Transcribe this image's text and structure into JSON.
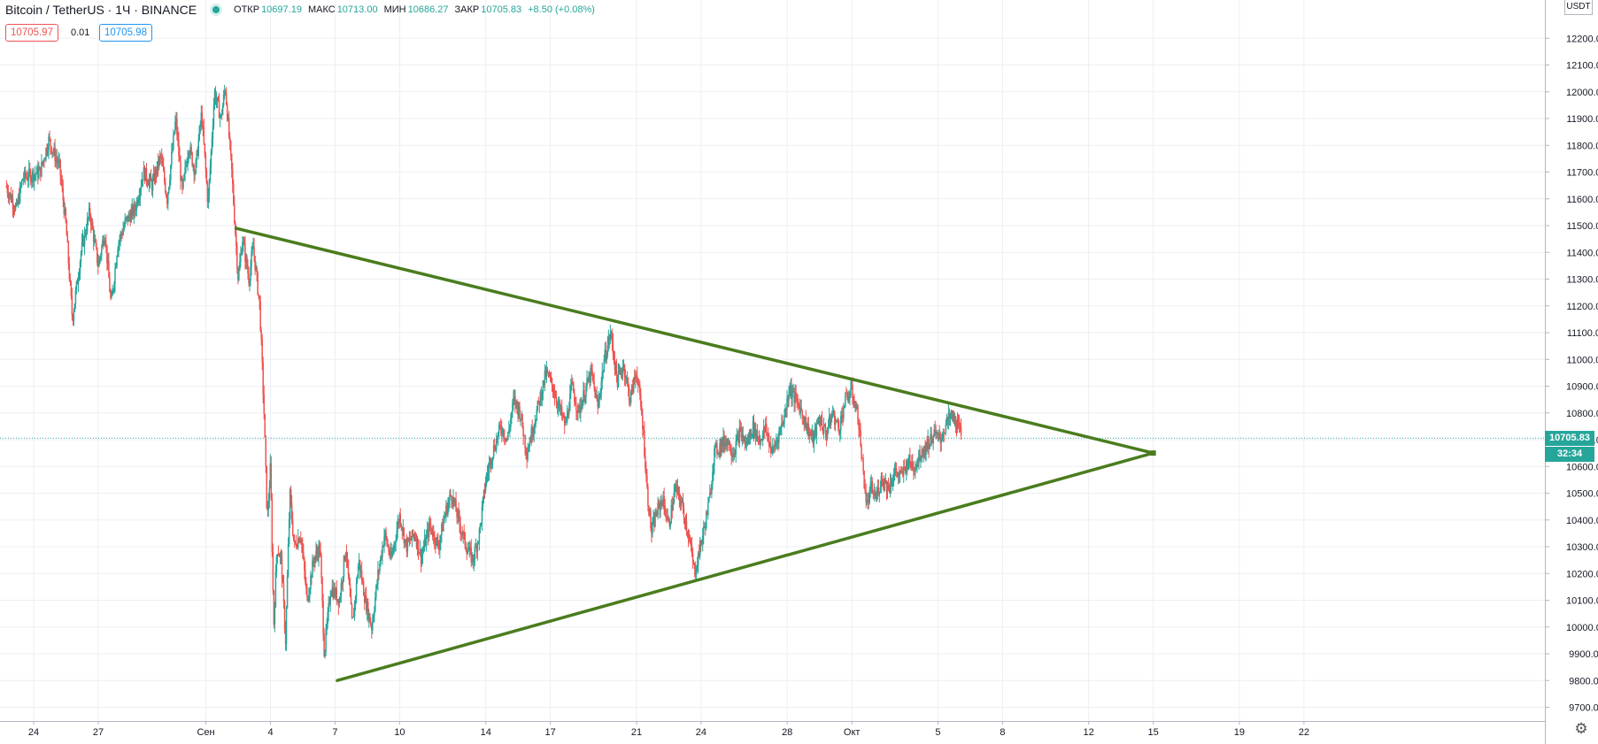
{
  "header": {
    "symbol": "Bitcoin / TetherUS · 1Ч · BINANCE",
    "open_label": "ОТКР",
    "open_value": "10697.19",
    "high_label": "МАКС",
    "high_value": "10713.00",
    "low_label": "МИН",
    "low_value": "10686.27",
    "close_label": "ЗАКР",
    "close_value": "10705.83",
    "change": "+8.50 (+0.08%)"
  },
  "trade": {
    "sell_price": "10705.97",
    "spread": "0.01",
    "buy_price": "10705.98"
  },
  "currency": "USDT",
  "last_price_label": "10705.83",
  "countdown_label": "32:34",
  "colors": {
    "up": "#26a69a",
    "down": "#ef5350",
    "trendline": "#4a7c1e",
    "grid": "#eceff4"
  },
  "chart_data": {
    "type": "candlestick",
    "y_ticks": [
      "9700.00",
      "9800.00",
      "9900.00",
      "10000.00",
      "10100.00",
      "10200.00",
      "10300.00",
      "10400.00",
      "10500.00",
      "10600.00",
      "10700.00",
      "10800.00",
      "10900.00",
      "11000.00",
      "11100.00",
      "11200.00",
      "11300.00",
      "11400.00",
      "11500.00",
      "11600.00",
      "11700.00",
      "11800.00",
      "11900.00",
      "12000.00",
      "12100.00",
      "12200.00"
    ],
    "ylim": [
      9600,
      12300
    ],
    "x_ticks": [
      {
        "label": "24",
        "day": 0
      },
      {
        "label": "27",
        "day": 3
      },
      {
        "label": "Сен",
        "day": 8
      },
      {
        "label": "4",
        "day": 11
      },
      {
        "label": "7",
        "day": 14
      },
      {
        "label": "10",
        "day": 17
      },
      {
        "label": "14",
        "day": 21
      },
      {
        "label": "17",
        "day": 24
      },
      {
        "label": "21",
        "day": 28
      },
      {
        "label": "24",
        "day": 31
      },
      {
        "label": "28",
        "day": 35
      },
      {
        "label": "Окт",
        "day": 38
      },
      {
        "label": "5",
        "day": 42
      },
      {
        "label": "8",
        "day": 45
      },
      {
        "label": "12",
        "day": 49
      },
      {
        "label": "15",
        "day": 52
      },
      {
        "label": "19",
        "day": 56
      },
      {
        "label": "22",
        "day": 59
      }
    ],
    "price_path": [
      [
        -1.3,
        11650
      ],
      [
        -0.8,
        11560
      ],
      [
        -0.5,
        11680
      ],
      [
        0.3,
        11700
      ],
      [
        0.7,
        11820
      ],
      [
        1.2,
        11720
      ],
      [
        1.5,
        11500
      ],
      [
        1.8,
        11150
      ],
      [
        2.2,
        11400
      ],
      [
        2.6,
        11550
      ],
      [
        3.0,
        11350
      ],
      [
        3.3,
        11480
      ],
      [
        3.6,
        11200
      ],
      [
        3.9,
        11430
      ],
      [
        4.3,
        11520
      ],
      [
        4.7,
        11560
      ],
      [
        5.1,
        11700
      ],
      [
        5.5,
        11650
      ],
      [
        5.9,
        11760
      ],
      [
        6.2,
        11600
      ],
      [
        6.6,
        11900
      ],
      [
        6.9,
        11620
      ],
      [
        7.2,
        11800
      ],
      [
        7.5,
        11700
      ],
      [
        7.8,
        11920
      ],
      [
        8.1,
        11580
      ],
      [
        8.4,
        12000
      ],
      [
        8.7,
        11900
      ],
      [
        8.9,
        12020
      ],
      [
        9.2,
        11700
      ],
      [
        9.5,
        11300
      ],
      [
        9.7,
        11450
      ],
      [
        10.0,
        11300
      ],
      [
        10.2,
        11420
      ],
      [
        10.5,
        11200
      ],
      [
        10.7,
        10800
      ],
      [
        10.85,
        10400
      ],
      [
        11.0,
        10600
      ],
      [
        11.15,
        10000
      ],
      [
        11.3,
        10300
      ],
      [
        11.5,
        10250
      ],
      [
        11.7,
        9950
      ],
      [
        11.9,
        10500
      ],
      [
        12.1,
        10300
      ],
      [
        12.4,
        10350
      ],
      [
        12.7,
        10100
      ],
      [
        13.0,
        10250
      ],
      [
        13.3,
        10300
      ],
      [
        13.5,
        9900
      ],
      [
        13.8,
        10150
      ],
      [
        14.2,
        10100
      ],
      [
        14.5,
        10300
      ],
      [
        14.8,
        10000
      ],
      [
        15.1,
        10250
      ],
      [
        15.4,
        10100
      ],
      [
        15.7,
        10000
      ],
      [
        16.0,
        10200
      ],
      [
        16.3,
        10350
      ],
      [
        16.6,
        10250
      ],
      [
        17.0,
        10420
      ],
      [
        17.3,
        10300
      ],
      [
        17.7,
        10350
      ],
      [
        18.0,
        10260
      ],
      [
        18.4,
        10380
      ],
      [
        18.8,
        10300
      ],
      [
        19.1,
        10420
      ],
      [
        19.4,
        10500
      ],
      [
        19.8,
        10380
      ],
      [
        20.1,
        10300
      ],
      [
        20.4,
        10250
      ],
      [
        20.7,
        10350
      ],
      [
        21.0,
        10550
      ],
      [
        21.3,
        10650
      ],
      [
        21.7,
        10750
      ],
      [
        22.0,
        10700
      ],
      [
        22.3,
        10850
      ],
      [
        22.6,
        10800
      ],
      [
        22.9,
        10650
      ],
      [
        23.2,
        10750
      ],
      [
        23.5,
        10850
      ],
      [
        23.8,
        10950
      ],
      [
        24.1,
        10900
      ],
      [
        24.4,
        10820
      ],
      [
        24.7,
        10750
      ],
      [
        25.0,
        10900
      ],
      [
        25.3,
        10800
      ],
      [
        25.6,
        10880
      ],
      [
        25.9,
        10950
      ],
      [
        26.2,
        10820
      ],
      [
        26.5,
        11000
      ],
      [
        26.8,
        11100
      ],
      [
        27.1,
        10920
      ],
      [
        27.4,
        10980
      ],
      [
        27.7,
        10850
      ],
      [
        28.0,
        10960
      ],
      [
        28.3,
        10750
      ],
      [
        28.5,
        10500
      ],
      [
        28.7,
        10350
      ],
      [
        28.9,
        10420
      ],
      [
        29.2,
        10480
      ],
      [
        29.5,
        10380
      ],
      [
        29.8,
        10520
      ],
      [
        30.1,
        10460
      ],
      [
        30.4,
        10350
      ],
      [
        30.7,
        10200
      ],
      [
        30.9,
        10280
      ],
      [
        31.1,
        10350
      ],
      [
        31.4,
        10480
      ],
      [
        31.6,
        10650
      ],
      [
        31.9,
        10680
      ],
      [
        32.2,
        10700
      ],
      [
        32.5,
        10650
      ],
      [
        32.8,
        10730
      ],
      [
        33.1,
        10680
      ],
      [
        33.4,
        10750
      ],
      [
        33.7,
        10700
      ],
      [
        34.0,
        10740
      ],
      [
        34.3,
        10650
      ],
      [
        34.6,
        10720
      ],
      [
        34.9,
        10800
      ],
      [
        35.1,
        10900
      ],
      [
        35.3,
        10860
      ],
      [
        35.6,
        10820
      ],
      [
        35.9,
        10750
      ],
      [
        36.2,
        10700
      ],
      [
        36.5,
        10780
      ],
      [
        36.8,
        10720
      ],
      [
        37.1,
        10800
      ],
      [
        37.4,
        10740
      ],
      [
        37.7,
        10850
      ],
      [
        38.0,
        10880
      ],
      [
        38.3,
        10780
      ],
      [
        38.5,
        10600
      ],
      [
        38.7,
        10450
      ],
      [
        38.9,
        10520
      ],
      [
        39.1,
        10480
      ],
      [
        39.4,
        10560
      ],
      [
        39.7,
        10520
      ],
      [
        40.0,
        10580
      ],
      [
        40.3,
        10560
      ],
      [
        40.6,
        10620
      ],
      [
        40.9,
        10600
      ],
      [
        41.2,
        10650
      ],
      [
        41.5,
        10680
      ],
      [
        41.8,
        10720
      ],
      [
        42.1,
        10700
      ],
      [
        42.4,
        10760
      ],
      [
        42.6,
        10790
      ],
      [
        42.9,
        10760
      ],
      [
        43.1,
        10705
      ]
    ],
    "trendlines": [
      {
        "name": "upper",
        "from": [
          9.4,
          11490
        ],
        "to": [
          52.0,
          10650
        ]
      },
      {
        "name": "lower",
        "from": [
          14.1,
          9800
        ],
        "to": [
          52.0,
          10650
        ]
      }
    ],
    "last_price": 10705.83
  }
}
